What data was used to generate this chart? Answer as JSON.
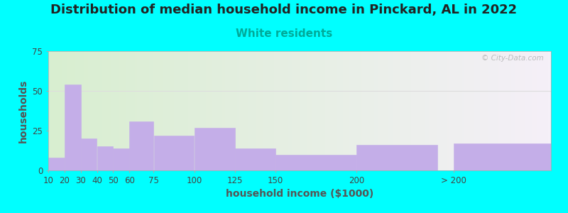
{
  "title": "Distribution of median household income in Pinckard, AL in 2022",
  "subtitle": "White residents",
  "xlabel": "household income ($1000)",
  "ylabel": "households",
  "background_outer": "#00FFFF",
  "bar_color": "#C4AEE8",
  "bar_edgecolor": "#C4AEE8",
  "ylim": [
    0,
    75
  ],
  "yticks": [
    0,
    25,
    50,
    75
  ],
  "bar_labels": [
    "10",
    "20",
    "30",
    "40",
    "50",
    "60",
    "75",
    "100",
    "125",
    "150",
    "200",
    "> 200"
  ],
  "bar_values": [
    8,
    54,
    20,
    15,
    14,
    31,
    22,
    27,
    14,
    10,
    16,
    17
  ],
  "bar_lefts": [
    10,
    20,
    30,
    40,
    50,
    60,
    75,
    100,
    125,
    150,
    200,
    260
  ],
  "bar_widths": [
    10,
    10,
    10,
    10,
    10,
    15,
    25,
    25,
    25,
    50,
    50,
    60
  ],
  "watermark": "© City-Data.com",
  "title_fontsize": 13,
  "subtitle_fontsize": 11,
  "subtitle_color": "#00AA99",
  "title_color": "#222222",
  "axis_label_fontsize": 10,
  "tick_fontsize": 8.5,
  "xlabel_color": "#555555",
  "ylabel_color": "#555555",
  "grid_color": "#DDDDDD",
  "xlim_left": 10,
  "xlim_right": 320
}
